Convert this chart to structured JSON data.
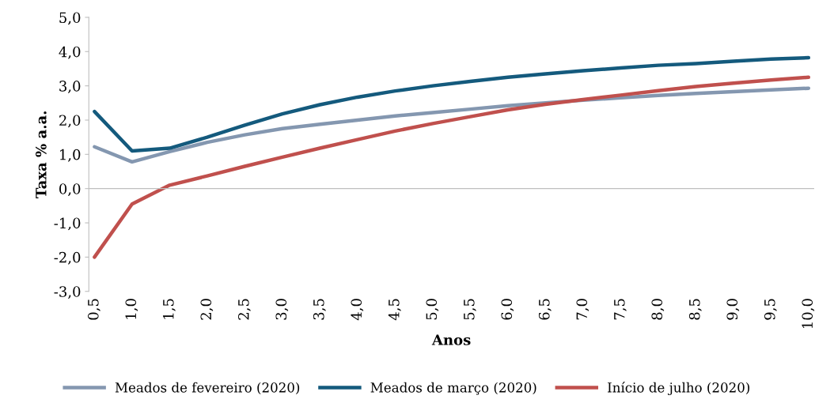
{
  "chart_data": {
    "type": "line",
    "xlabel": "Anos",
    "ylabel": "Taxa % a.a.",
    "categories": [
      "0,5",
      "1,0",
      "1,5",
      "2,0",
      "2,5",
      "3,0",
      "3,5",
      "4,0",
      "4,5",
      "5,0",
      "5,5",
      "6,0",
      "6,5",
      "7,0",
      "7,5",
      "8,0",
      "8,5",
      "9,0",
      "9,5",
      "10,0"
    ],
    "series": [
      {
        "name": "Meados de fevereiro (2020)",
        "color": "#8497b0",
        "values": [
          1.22,
          0.78,
          1.08,
          1.35,
          1.57,
          1.75,
          1.88,
          2.0,
          2.12,
          2.22,
          2.32,
          2.42,
          2.5,
          2.58,
          2.65,
          2.72,
          2.78,
          2.83,
          2.88,
          2.93
        ]
      },
      {
        "name": "Meados de março (2020)",
        "color": "#145a7d",
        "values": [
          2.25,
          1.1,
          1.18,
          1.5,
          1.85,
          2.18,
          2.45,
          2.67,
          2.85,
          3.0,
          3.13,
          3.25,
          3.35,
          3.44,
          3.52,
          3.6,
          3.65,
          3.72,
          3.78,
          3.82
        ]
      },
      {
        "name": "Início de julho (2020)",
        "color": "#c0504d",
        "values": [
          -2.0,
          -0.45,
          0.1,
          0.37,
          0.65,
          0.92,
          1.18,
          1.43,
          1.68,
          1.9,
          2.1,
          2.3,
          2.46,
          2.6,
          2.73,
          2.86,
          2.98,
          3.08,
          3.17,
          3.25
        ]
      }
    ],
    "ylim": [
      -3,
      5
    ],
    "yticks": [
      {
        "value": -3,
        "label": "-3,0"
      },
      {
        "value": -2,
        "label": "-2,0"
      },
      {
        "value": -1,
        "label": "-1,0"
      },
      {
        "value": 0,
        "label": "0,0"
      },
      {
        "value": 1,
        "label": "1,0"
      },
      {
        "value": 2,
        "label": "2,0"
      },
      {
        "value": 3,
        "label": "3,0"
      },
      {
        "value": 4,
        "label": "4,0"
      },
      {
        "value": 5,
        "label": "5,0"
      }
    ],
    "ref_lines": [
      {
        "axis": "y",
        "value": 0,
        "color": "#bfbfbf"
      }
    ],
    "grid": false,
    "legend": "bottom",
    "marker": "none",
    "line_style": "solid"
  }
}
